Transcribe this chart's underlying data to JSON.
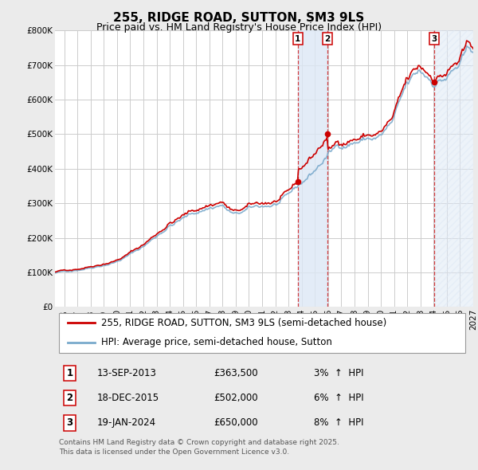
{
  "title": "255, RIDGE ROAD, SUTTON, SM3 9LS",
  "subtitle": "Price paid vs. HM Land Registry's House Price Index (HPI)",
  "ylim": [
    0,
    800000
  ],
  "yticks": [
    0,
    100000,
    200000,
    300000,
    400000,
    500000,
    600000,
    700000,
    800000
  ],
  "ytick_labels": [
    "£0",
    "£100K",
    "£200K",
    "£300K",
    "£400K",
    "£500K",
    "£600K",
    "£700K",
    "£800K"
  ],
  "xlim_start": 1995.3,
  "xlim_end": 2027.0,
  "bg_color": "#ebebeb",
  "plot_bg_color": "#ffffff",
  "grid_color": "#cccccc",
  "red_line_color": "#cc0000",
  "blue_line_color": "#7aaacc",
  "sale_marker_color": "#cc0000",
  "shade_color": "#dde8f5",
  "hatch_color": "#c8d8f0",
  "transactions": [
    {
      "label": "1",
      "date_str": "13-SEP-2013",
      "date_num": 2013.71,
      "price": 363500,
      "pct": "3%",
      "direction": "↑"
    },
    {
      "label": "2",
      "date_str": "18-DEC-2015",
      "date_num": 2015.96,
      "price": 502000,
      "pct": "6%",
      "direction": "↑"
    },
    {
      "label": "3",
      "date_str": "19-JAN-2024",
      "date_num": 2024.05,
      "price": 650000,
      "pct": "8%",
      "direction": "↑"
    }
  ],
  "legend_line1": "255, RIDGE ROAD, SUTTON, SM3 9LS (semi-detached house)",
  "legend_line2": "HPI: Average price, semi-detached house, Sutton",
  "footer": "Contains HM Land Registry data © Crown copyright and database right 2025.\nThis data is licensed under the Open Government Licence v3.0.",
  "title_fontsize": 11,
  "subtitle_fontsize": 9,
  "tick_fontsize": 7.5,
  "legend_fontsize": 8.5,
  "table_fontsize": 8.5,
  "footer_fontsize": 6.5
}
